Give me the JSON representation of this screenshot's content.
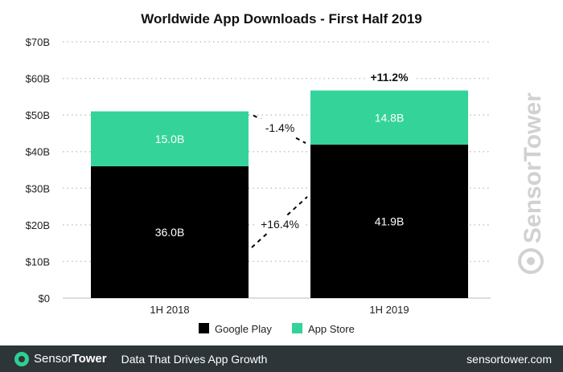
{
  "chart_data": {
    "type": "bar",
    "stacked": true,
    "title": "Worldwide App Downloads - First Half 2019",
    "categories": [
      "1H 2018",
      "1H 2019"
    ],
    "series": [
      {
        "name": "Google Play",
        "values": [
          36.0,
          41.9
        ],
        "labels": [
          "36.0B",
          "41.9B"
        ],
        "color": "#000000"
      },
      {
        "name": "App Store",
        "values": [
          15.0,
          14.8
        ],
        "labels": [
          "15.0B",
          "14.8B"
        ],
        "color": "#34d399"
      }
    ],
    "ylim": [
      0,
      70
    ],
    "yticks": [
      "$0",
      "$10B",
      "$20B",
      "$30B",
      "$40B",
      "$50B",
      "$60B",
      "$70B"
    ],
    "grid": true,
    "legend": "bottom",
    "annotations": {
      "total_change": "+11.2%",
      "app_store_change": "-1.4%",
      "google_play_change": "+16.4%"
    },
    "watermark": "SensorTower"
  },
  "footer": {
    "brand_part1": "Sensor",
    "brand_part2": "Tower",
    "tagline": "Data That Drives App Growth",
    "site": "sensortower.com"
  }
}
